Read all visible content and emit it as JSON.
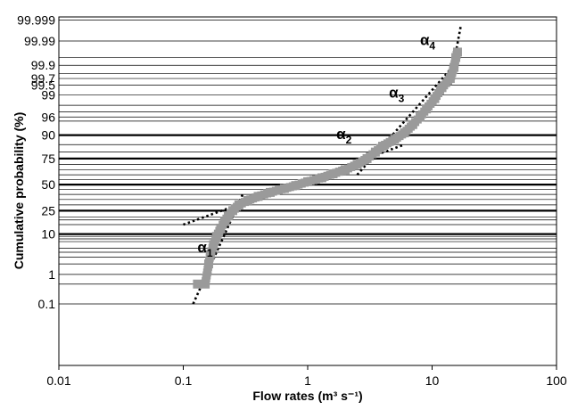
{
  "chart_data": {
    "type": "scatter",
    "title": "",
    "xlabel": "Flow rates (m³ s⁻¹)",
    "ylabel": "Cumulative probability (%)",
    "x_scale": "log",
    "y_scale": "probability",
    "xlim": [
      0.01,
      100
    ],
    "x_ticks": [
      0.01,
      0.1,
      1,
      10,
      100
    ],
    "x_tick_labels": [
      "0.01",
      "0.1",
      "1",
      "10",
      "100"
    ],
    "y_tick_labels": [
      "99.999",
      "99.99",
      "99.9",
      "99.7",
      "99.5",
      "99",
      "96",
      "90",
      "75",
      "50",
      "25",
      "10",
      "1",
      "0.1"
    ],
    "y_grid_percent": [
      0.5,
      2,
      3,
      4,
      5,
      7,
      8,
      9,
      15,
      18,
      20,
      30,
      35,
      40,
      45,
      55,
      60,
      65,
      70,
      80,
      85,
      95,
      97,
      98,
      99.8,
      99.95
    ],
    "y_major_percent": [
      10,
      25,
      50,
      75,
      90
    ],
    "grid": true,
    "legend": "none",
    "series": [
      {
        "marker": "square",
        "color": "#9a9a9a",
        "points": [
          [
            0.13,
            0.5
          ],
          [
            0.15,
            0.5
          ],
          [
            0.16,
            2
          ],
          [
            0.165,
            3.5
          ],
          [
            0.175,
            6
          ],
          [
            0.185,
            9
          ],
          [
            0.2,
            13
          ],
          [
            0.215,
            17
          ],
          [
            0.23,
            21
          ],
          [
            0.25,
            25
          ],
          [
            0.28,
            30
          ],
          [
            0.33,
            34
          ],
          [
            0.4,
            38
          ],
          [
            0.5,
            42
          ],
          [
            0.65,
            46
          ],
          [
            0.8,
            49
          ],
          [
            1.0,
            53
          ],
          [
            1.3,
            57
          ],
          [
            1.6,
            61
          ],
          [
            2.0,
            65
          ],
          [
            2.5,
            70
          ],
          [
            3.0,
            75
          ],
          [
            3.5,
            80
          ],
          [
            4.0,
            84
          ],
          [
            5.0,
            88
          ],
          [
            6.0,
            91
          ],
          [
            7.0,
            94
          ],
          [
            8.0,
            96
          ],
          [
            9.0,
            97.5
          ],
          [
            10.5,
            98.7
          ],
          [
            12.0,
            99.4
          ],
          [
            14.0,
            99.7
          ],
          [
            15.0,
            99.88
          ],
          [
            15.5,
            99.95
          ],
          [
            16.0,
            99.97
          ]
        ]
      }
    ],
    "fit_lines": [
      {
        "label": "α",
        "subscript": "1",
        "points": [
          [
            0.12,
            0.1
          ],
          [
            0.3,
            40
          ]
        ]
      },
      {
        "label": "α",
        "subscript": "2",
        "points": [
          [
            0.1,
            15
          ],
          [
            6.0,
            85
          ]
        ]
      },
      {
        "label": "α",
        "subscript": "3",
        "points": [
          [
            2.5,
            60
          ],
          [
            15.0,
            99.9
          ]
        ]
      },
      {
        "label": "α",
        "subscript": "4",
        "points": [
          [
            14.0,
            99.6
          ],
          [
            17.0,
            99.998
          ]
        ]
      }
    ],
    "annotations": [
      {
        "label": "α",
        "subscript": "1",
        "x": 0.13,
        "y": 4
      },
      {
        "label": "α",
        "subscript": "2",
        "x": 1.7,
        "y": 88
      },
      {
        "label": "α",
        "subscript": "3",
        "x": 4.5,
        "y": 98.8
      },
      {
        "label": "α",
        "subscript": "4",
        "x": 8.0,
        "y": 99.985
      }
    ]
  }
}
